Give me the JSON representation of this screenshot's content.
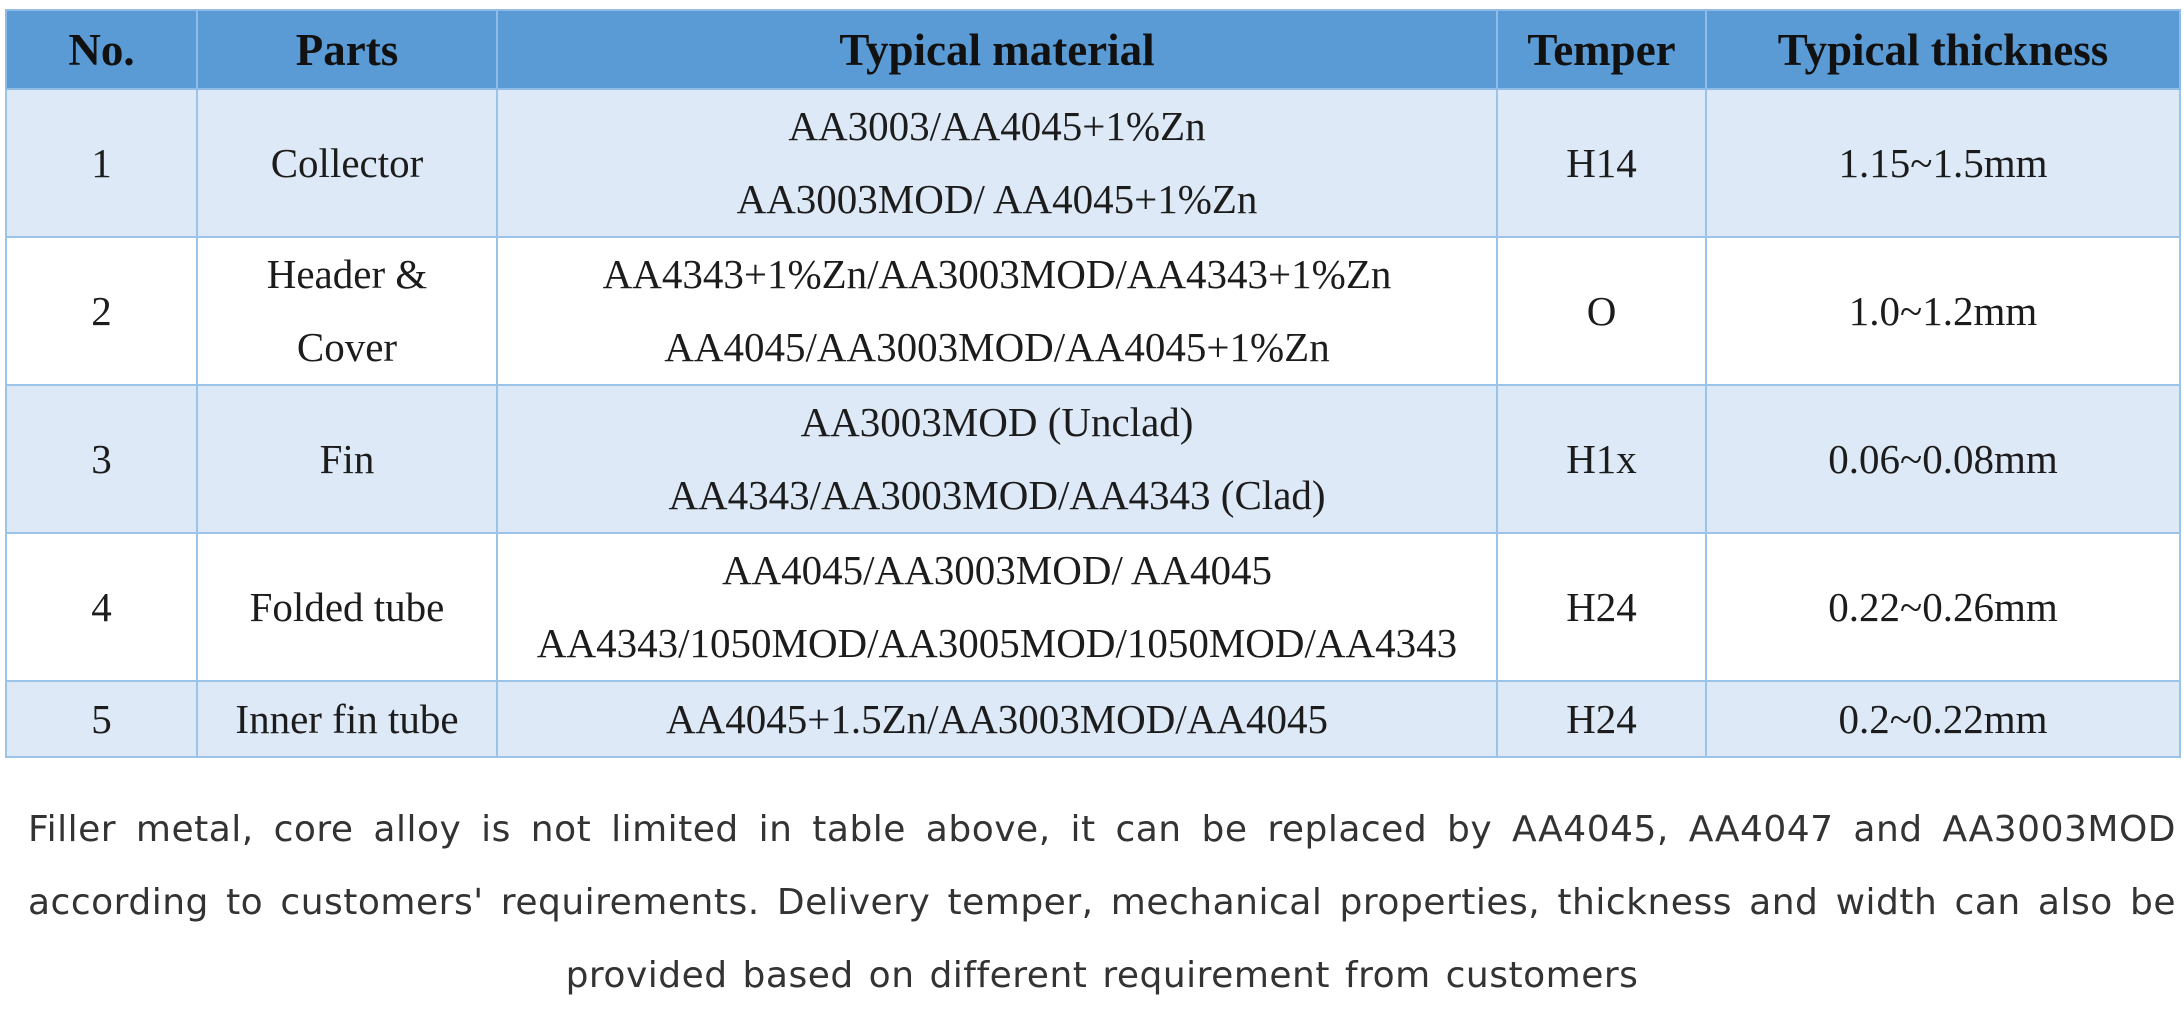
{
  "table": {
    "headers": [
      "No.",
      "Parts",
      "Typical material",
      "Temper",
      "Typical thickness"
    ],
    "rows": [
      {
        "no": "1",
        "part": [
          "Collector"
        ],
        "material": [
          "AA3003/AA4045+1%Zn",
          "AA3003MOD/ AA4045+1%Zn"
        ],
        "temper": "H14",
        "thickness": "1.15~1.5mm"
      },
      {
        "no": "2",
        "part": [
          "Header &",
          "Cover"
        ],
        "material": [
          "AA4343+1%Zn/AA3003MOD/AA4343+1%Zn",
          "AA4045/AA3003MOD/AA4045+1%Zn"
        ],
        "temper": "O",
        "thickness": "1.0~1.2mm"
      },
      {
        "no": "3",
        "part": [
          "Fin"
        ],
        "material": [
          "AA3003MOD (Unclad)",
          "AA4343/AA3003MOD/AA4343 (Clad)"
        ],
        "temper": "H1x",
        "thickness": "0.06~0.08mm"
      },
      {
        "no": "4",
        "part": [
          "Folded tube"
        ],
        "material": [
          "AA4045/AA3003MOD/ AA4045",
          "AA4343/1050MOD/AA3005MOD/1050MOD/AA4343"
        ],
        "temper": "H24",
        "thickness": "0.22~0.26mm"
      },
      {
        "no": "5",
        "part": [
          "Inner fin tube"
        ],
        "material": [
          "AA4045+1.5Zn/AA3003MOD/AA4045"
        ],
        "temper": "H24",
        "thickness": "0.2~0.22mm"
      }
    ]
  },
  "note": "Filler metal, core alloy is not limited in table above, it can be replaced by AA4045, AA4047 and AA3003MOD according to customers' requirements. Delivery temper, mechanical properties, thickness and width can also be provided based on different requirement from customers",
  "colors": {
    "header_bg": "#5b9bd5",
    "odd_row_bg": "#dde9f6",
    "even_row_bg": "#ffffff",
    "border": "#9cc3e8"
  }
}
